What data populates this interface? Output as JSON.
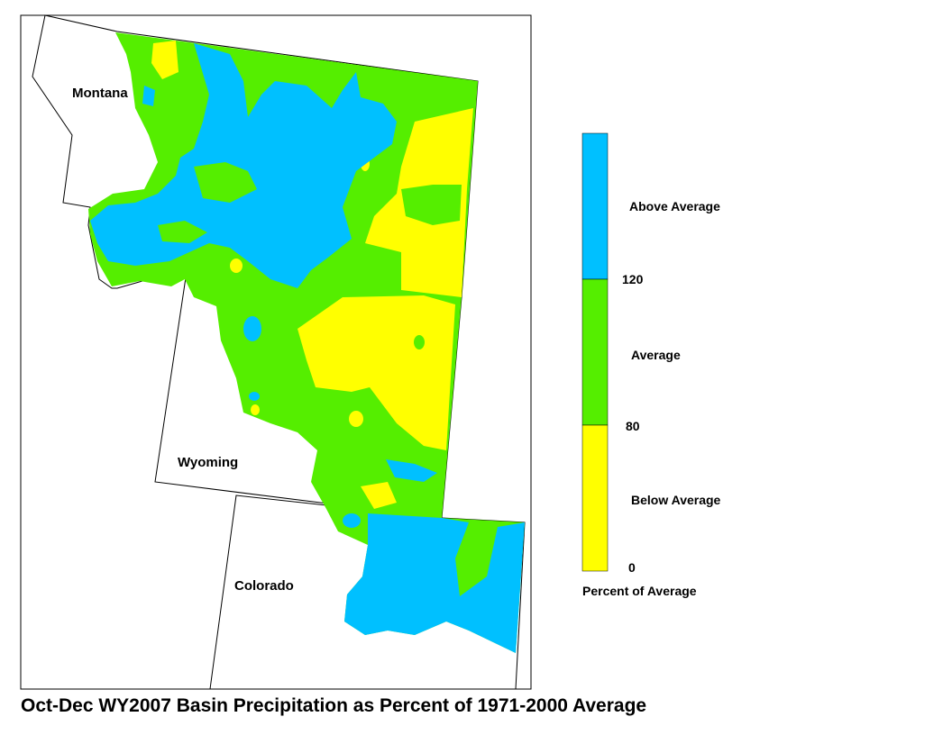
{
  "map": {
    "state_labels": {
      "montana": "Montana",
      "wyoming": "Wyoming",
      "colorado": "Colorado"
    }
  },
  "legend": {
    "title": "Percent of Average",
    "classes": [
      {
        "name": "Above Average",
        "color": "#00C0FF"
      },
      {
        "name": "Average",
        "color": "#55EE00"
      },
      {
        "name": "Below Average",
        "color": "#FFFF00"
      }
    ],
    "breaks": {
      "upper": "120",
      "lower": "80",
      "min": "0"
    }
  },
  "caption": "Oct-Dec WY2007 Basin Precipitation as Percent of 1971-2000 Average"
}
